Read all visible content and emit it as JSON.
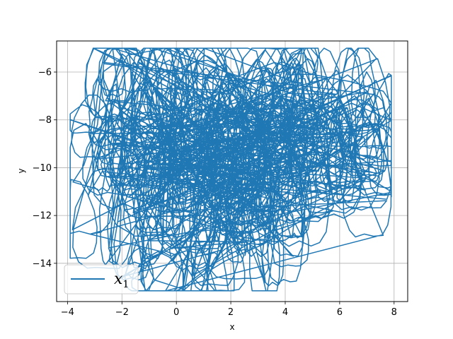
{
  "chart_data": {
    "type": "line",
    "title": "",
    "xlabel": "x",
    "ylabel": "y",
    "xlim": [
      -4.4,
      8.5
    ],
    "ylim": [
      -15.6,
      -4.7
    ],
    "xticks": [
      -4,
      -2,
      0,
      2,
      4,
      6,
      8
    ],
    "yticks": [
      -14,
      -12,
      -10,
      -8,
      -6
    ],
    "xtick_labels": [
      "−4",
      "−2",
      "0",
      "2",
      "4",
      "6",
      "8"
    ],
    "ytick_labels": [
      "−14",
      "−12",
      "−10",
      "−8",
      "−6"
    ],
    "grid": true,
    "legend_position": "lower-left",
    "series": [
      {
        "name": "x",
        "name_subscript": "1",
        "color": "#1f77b4",
        "description_of_shape": "dense chaotic trajectory",
        "anchor_points": [
          [
            -2.6,
            -7.2
          ],
          [
            -1.8,
            -5.3
          ],
          [
            -0.4,
            -5.0
          ],
          [
            1.0,
            -5.6
          ],
          [
            2.2,
            -6.2
          ],
          [
            3.6,
            -5.6
          ],
          [
            5.0,
            -6.1
          ],
          [
            6.4,
            -6.4
          ],
          [
            7.6,
            -6.8
          ],
          [
            7.9,
            -7.3
          ],
          [
            7.2,
            -8.6
          ],
          [
            6.6,
            -9.4
          ],
          [
            7.3,
            -9.7
          ],
          [
            6.0,
            -11.4
          ],
          [
            4.6,
            -12.2
          ],
          [
            3.2,
            -13.2
          ],
          [
            1.8,
            -13.9
          ],
          [
            0.8,
            -14.6
          ],
          [
            0.3,
            -15.1
          ],
          [
            -0.8,
            -14.7
          ],
          [
            -1.6,
            -12.8
          ],
          [
            -2.2,
            -12.4
          ],
          [
            -2.9,
            -10.9
          ],
          [
            -3.8,
            -10.6
          ],
          [
            -3.4,
            -9.9
          ],
          [
            -2.9,
            -8.2
          ],
          [
            -2.7,
            -6.0
          ],
          [
            -2.1,
            -5.5
          ],
          [
            -1.2,
            -6.3
          ],
          [
            0.5,
            -7.4
          ],
          [
            1.8,
            -8.1
          ],
          [
            3.0,
            -8.6
          ],
          [
            4.2,
            -8.4
          ],
          [
            5.6,
            -8.0
          ],
          [
            6.8,
            -7.4
          ]
        ]
      }
    ]
  }
}
